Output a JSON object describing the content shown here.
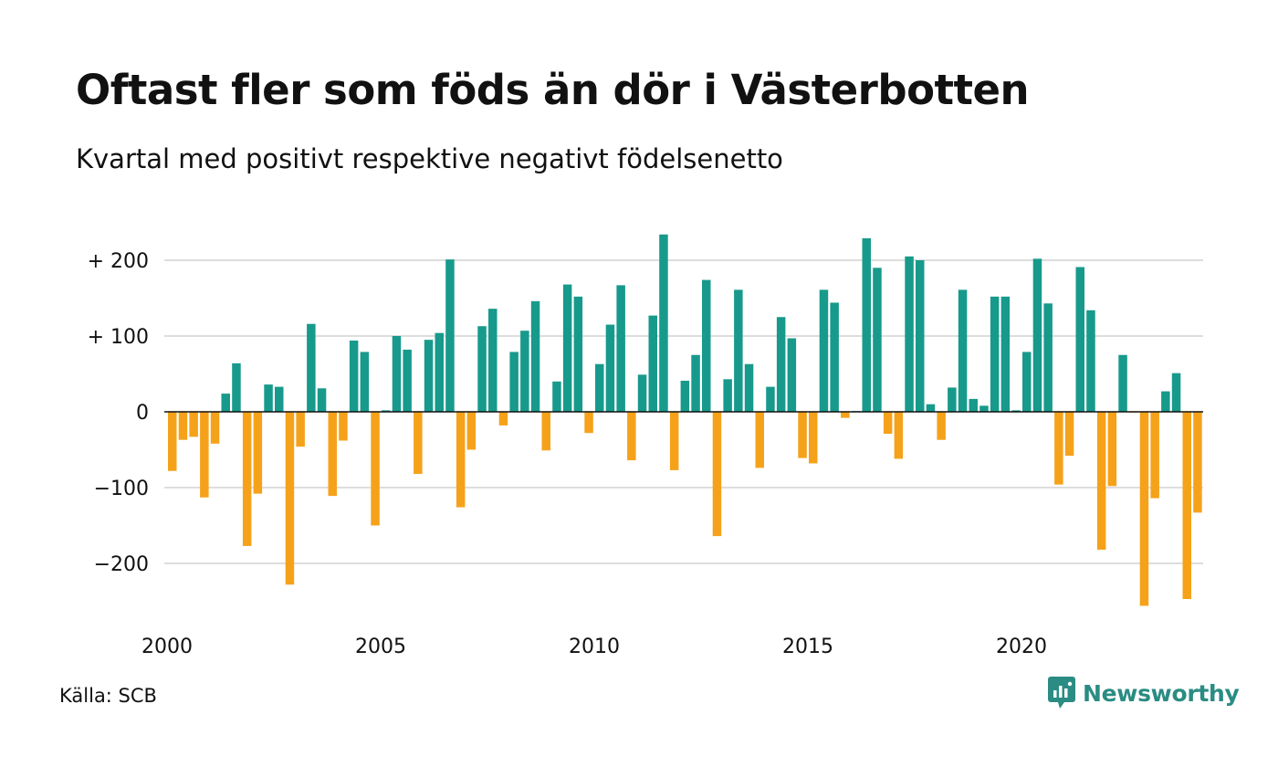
{
  "header": {
    "title": "Oftast fler som föds än dör i Västerbotten",
    "subtitle": "Kvartal med positivt respektive negativt födelsenetto"
  },
  "footer": {
    "source": "Källa: SCB",
    "brand": "Newsworthy",
    "brand_icon": "newsworthy-logo-icon"
  },
  "colors": {
    "positive": "#179a8b",
    "negative": "#f5a21a",
    "grid": "#dddddd",
    "brand": "#2a8c83"
  },
  "chart_data": {
    "type": "bar",
    "title": "Oftast fler som föds än dör i Västerbotten",
    "subtitle": "Kvartal med positivt respektive negativt födelsenetto",
    "xlabel": "",
    "ylabel": "",
    "x_start": 2000,
    "periods_per_year": 4,
    "x_ticks": [
      "2000",
      "2005",
      "2010",
      "2015",
      "2020"
    ],
    "y_ticks": [
      {
        "value": 200,
        "label": "+ 200"
      },
      {
        "value": 100,
        "label": "+ 100"
      },
      {
        "value": 0,
        "label": "0"
      },
      {
        "value": -100,
        "label": "−100"
      },
      {
        "value": -200,
        "label": "−200"
      }
    ],
    "ylim": [
      -260,
      240
    ],
    "grid": true,
    "values": [
      -78,
      -37,
      -33,
      -113,
      -42,
      24,
      64,
      -177,
      -108,
      36,
      33,
      -228,
      -46,
      116,
      31,
      -111,
      -38,
      94,
      79,
      -150,
      2,
      100,
      82,
      -82,
      95,
      104,
      201,
      -126,
      -50,
      113,
      136,
      -18,
      79,
      107,
      146,
      -51,
      40,
      168,
      152,
      -28,
      63,
      115,
      167,
      -64,
      49,
      127,
      234,
      -77,
      41,
      75,
      174,
      -164,
      43,
      161,
      63,
      -74,
      33,
      125,
      97,
      -61,
      -68,
      161,
      144,
      -8,
      1,
      229,
      190,
      -29,
      -62,
      205,
      200,
      10,
      -37,
      32,
      161,
      17,
      8,
      152,
      152,
      2,
      79,
      202,
      143,
      -96,
      -58,
      191,
      134,
      -182,
      -98,
      75,
      -1,
      -256,
      -114,
      27,
      51,
      -247,
      -133
    ]
  }
}
